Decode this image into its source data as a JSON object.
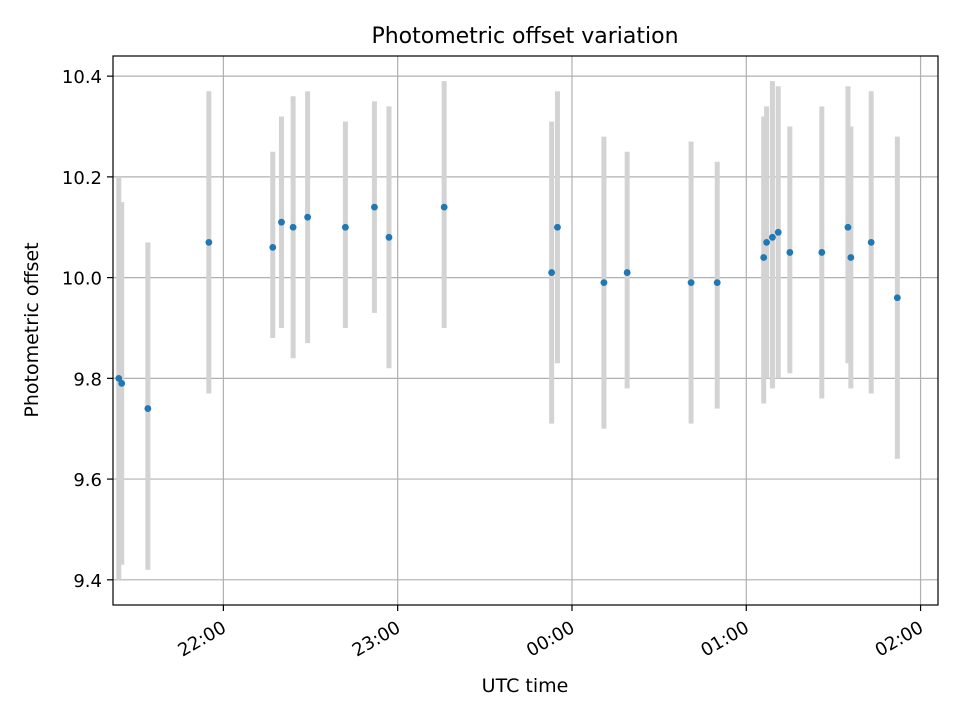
{
  "chart_data": {
    "type": "scatter",
    "title": "Photometric offset variation",
    "xlabel": "UTC time",
    "ylabel": "Photometric offset",
    "x_axis": {
      "type": "time",
      "range": [
        "21:22",
        "02:06"
      ],
      "ticks": [
        "22:00",
        "23:00",
        "00:00",
        "01:00",
        "02:00"
      ]
    },
    "y_axis": {
      "range": [
        9.35,
        10.44
      ],
      "ticks": [
        "9.4",
        "9.6",
        "9.8",
        "10.0",
        "10.2",
        "10.4"
      ]
    },
    "grid": true,
    "colors": {
      "point": "#1f77b4",
      "errorbar": "#d3d3d3",
      "grid": "#b0b0b0",
      "axis": "#000000"
    },
    "points": [
      {
        "x": "21:24",
        "y": 9.8,
        "ylow": 9.4,
        "yhigh": 10.2
      },
      {
        "x": "21:25",
        "y": 9.79,
        "ylow": 9.43,
        "yhigh": 10.15
      },
      {
        "x": "21:34",
        "y": 9.74,
        "ylow": 9.42,
        "yhigh": 10.07
      },
      {
        "x": "21:55",
        "y": 10.07,
        "ylow": 9.77,
        "yhigh": 10.37
      },
      {
        "x": "22:17",
        "y": 10.06,
        "ylow": 9.88,
        "yhigh": 10.25
      },
      {
        "x": "22:20",
        "y": 10.11,
        "ylow": 9.9,
        "yhigh": 10.32
      },
      {
        "x": "22:24",
        "y": 10.1,
        "ylow": 9.84,
        "yhigh": 10.36
      },
      {
        "x": "22:29",
        "y": 10.12,
        "ylow": 9.87,
        "yhigh": 10.37
      },
      {
        "x": "22:42",
        "y": 10.1,
        "ylow": 9.9,
        "yhigh": 10.31
      },
      {
        "x": "22:52",
        "y": 10.14,
        "ylow": 9.93,
        "yhigh": 10.35
      },
      {
        "x": "22:57",
        "y": 10.08,
        "ylow": 9.82,
        "yhigh": 10.34
      },
      {
        "x": "23:16",
        "y": 10.14,
        "ylow": 9.9,
        "yhigh": 10.39
      },
      {
        "x": "23:53",
        "y": 10.01,
        "ylow": 9.71,
        "yhigh": 10.31
      },
      {
        "x": "23:55",
        "y": 10.1,
        "ylow": 9.83,
        "yhigh": 10.37
      },
      {
        "x": "00:11",
        "y": 9.99,
        "ylow": 9.7,
        "yhigh": 10.28
      },
      {
        "x": "00:19",
        "y": 10.01,
        "ylow": 9.78,
        "yhigh": 10.25
      },
      {
        "x": "00:41",
        "y": 9.99,
        "ylow": 9.71,
        "yhigh": 10.27
      },
      {
        "x": "00:50",
        "y": 9.99,
        "ylow": 9.74,
        "yhigh": 10.23
      },
      {
        "x": "01:06",
        "y": 10.04,
        "ylow": 9.75,
        "yhigh": 10.32
      },
      {
        "x": "01:07",
        "y": 10.07,
        "ylow": 9.8,
        "yhigh": 10.34
      },
      {
        "x": "01:09",
        "y": 10.08,
        "ylow": 9.78,
        "yhigh": 10.39
      },
      {
        "x": "01:11",
        "y": 10.09,
        "ylow": 9.8,
        "yhigh": 10.38
      },
      {
        "x": "01:15",
        "y": 10.05,
        "ylow": 9.81,
        "yhigh": 10.3
      },
      {
        "x": "01:26",
        "y": 10.05,
        "ylow": 9.76,
        "yhigh": 10.34
      },
      {
        "x": "01:35",
        "y": 10.1,
        "ylow": 9.83,
        "yhigh": 10.38
      },
      {
        "x": "01:36",
        "y": 10.04,
        "ylow": 9.78,
        "yhigh": 10.3
      },
      {
        "x": "01:43",
        "y": 10.07,
        "ylow": 9.77,
        "yhigh": 10.37
      },
      {
        "x": "01:52",
        "y": 9.96,
        "ylow": 9.64,
        "yhigh": 10.28
      }
    ]
  }
}
